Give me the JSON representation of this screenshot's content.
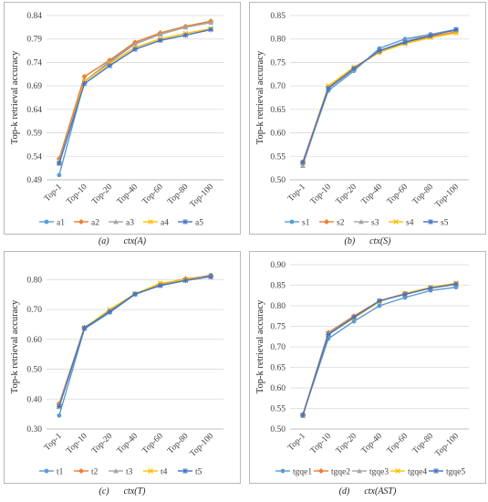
{
  "chart_data": [
    {
      "type": "line",
      "caption_label": "(a)",
      "caption_text": "ctx(A)",
      "ylabel": "Top-k retrieval accuracy",
      "categories": [
        "Top-1",
        "Top-10",
        "Top-20",
        "Top-40",
        "Top-60",
        "Top-80",
        "Top-100"
      ],
      "ylim": [
        0.49,
        0.84
      ],
      "yticks": [
        "0.49",
        "0.54",
        "0.59",
        "0.64",
        "0.69",
        "0.74",
        "0.79",
        "0.84"
      ],
      "series": [
        {
          "name": "a1",
          "color": "#5b9bd5",
          "values": [
            0.5,
            0.7,
            0.742,
            0.78,
            0.8,
            0.815,
            0.825
          ]
        },
        {
          "name": "a2",
          "color": "#ed7d31",
          "values": [
            0.535,
            0.71,
            0.745,
            0.783,
            0.803,
            0.817,
            0.828
          ]
        },
        {
          "name": "a3",
          "color": "#a5a5a5",
          "values": [
            0.53,
            0.7,
            0.74,
            0.779,
            0.8,
            0.815,
            0.825
          ]
        },
        {
          "name": "a4",
          "color": "#ffc000",
          "values": [
            0.525,
            0.7,
            0.737,
            0.772,
            0.79,
            0.802,
            0.812
          ]
        },
        {
          "name": "a5",
          "color": "#4472c4",
          "values": [
            0.525,
            0.695,
            0.733,
            0.768,
            0.787,
            0.798,
            0.81
          ]
        }
      ]
    },
    {
      "type": "line",
      "caption_label": "(b)",
      "caption_text": "ctx(S)",
      "ylabel": "Top-k retrieval accuracy",
      "categories": [
        "Top-1",
        "Top-10",
        "Top-20",
        "Top-40",
        "Top-60",
        "Top-80",
        "Top-100"
      ],
      "ylim": [
        0.5,
        0.85
      ],
      "yticks": [
        "0.50",
        "0.55",
        "0.60",
        "0.65",
        "0.70",
        "0.75",
        "0.80",
        "0.85"
      ],
      "series": [
        {
          "name": "s1",
          "color": "#5b9bd5",
          "values": [
            0.535,
            0.69,
            0.732,
            0.78,
            0.8,
            0.81,
            0.82
          ]
        },
        {
          "name": "s2",
          "color": "#ed7d31",
          "values": [
            0.538,
            0.698,
            0.738,
            0.772,
            0.793,
            0.805,
            0.815
          ]
        },
        {
          "name": "s3",
          "color": "#a5a5a5",
          "values": [
            0.53,
            0.695,
            0.735,
            0.775,
            0.795,
            0.81,
            0.818
          ]
        },
        {
          "name": "s4",
          "color": "#ffc000",
          "values": [
            0.536,
            0.7,
            0.74,
            0.772,
            0.79,
            0.803,
            0.813
          ]
        },
        {
          "name": "s5",
          "color": "#4472c4",
          "values": [
            0.537,
            0.695,
            0.737,
            0.775,
            0.793,
            0.807,
            0.82
          ]
        }
      ]
    },
    {
      "type": "line",
      "caption_label": "(c)",
      "caption_text": "ctx(T)",
      "ylabel": "Top-k retrieval accuracy",
      "categories": [
        "Top-1",
        "Top-10",
        "Top-20",
        "Top-40",
        "Top-60",
        "Top-80",
        "Top-100"
      ],
      "ylim": [
        0.3,
        0.85
      ],
      "yticks": [
        "0.30",
        "0.40",
        "0.50",
        "0.60",
        "0.70",
        "0.80"
      ],
      "series": [
        {
          "name": "t1",
          "color": "#5b9bd5",
          "values": [
            0.345,
            0.635,
            0.69,
            0.75,
            0.782,
            0.8,
            0.815
          ]
        },
        {
          "name": "t2",
          "color": "#ed7d31",
          "values": [
            0.385,
            0.64,
            0.695,
            0.752,
            0.785,
            0.803,
            0.812
          ]
        },
        {
          "name": "t3",
          "color": "#a5a5a5",
          "values": [
            0.38,
            0.64,
            0.693,
            0.752,
            0.782,
            0.8,
            0.81
          ]
        },
        {
          "name": "t4",
          "color": "#ffc000",
          "values": [
            0.375,
            0.638,
            0.7,
            0.752,
            0.788,
            0.8,
            0.81
          ]
        },
        {
          "name": "t5",
          "color": "#4472c4",
          "values": [
            0.375,
            0.638,
            0.693,
            0.752,
            0.78,
            0.797,
            0.81
          ]
        }
      ]
    },
    {
      "type": "line",
      "caption_label": "(d)",
      "caption_text": "ctx(AST)",
      "ylabel": "Top-k retrieval accuracy",
      "categories": [
        "Top-1",
        "Top-10",
        "Top-20",
        "Top-40",
        "Top-60",
        "Top-80",
        "Top-100"
      ],
      "ylim": [
        0.5,
        0.9
      ],
      "yticks": [
        "0.50",
        "0.55",
        "0.60",
        "0.65",
        "0.70",
        "0.75",
        "0.80",
        "0.85",
        "0.90"
      ],
      "series": [
        {
          "name": "tgqe1",
          "color": "#5b9bd5",
          "values": [
            0.535,
            0.72,
            0.762,
            0.8,
            0.82,
            0.837,
            0.845
          ]
        },
        {
          "name": "tgqe2",
          "color": "#ed7d31",
          "values": [
            0.535,
            0.735,
            0.775,
            0.812,
            0.83,
            0.843,
            0.852
          ]
        },
        {
          "name": "tgqe3",
          "color": "#a5a5a5",
          "values": [
            0.533,
            0.733,
            0.773,
            0.812,
            0.828,
            0.843,
            0.852
          ]
        },
        {
          "name": "tgqe4",
          "color": "#ffc000",
          "values": [
            0.533,
            0.73,
            0.77,
            0.81,
            0.83,
            0.845,
            0.855
          ]
        },
        {
          "name": "tgqe5",
          "color": "#4472c4",
          "values": [
            0.533,
            0.73,
            0.772,
            0.812,
            0.828,
            0.843,
            0.853
          ]
        }
      ]
    }
  ]
}
